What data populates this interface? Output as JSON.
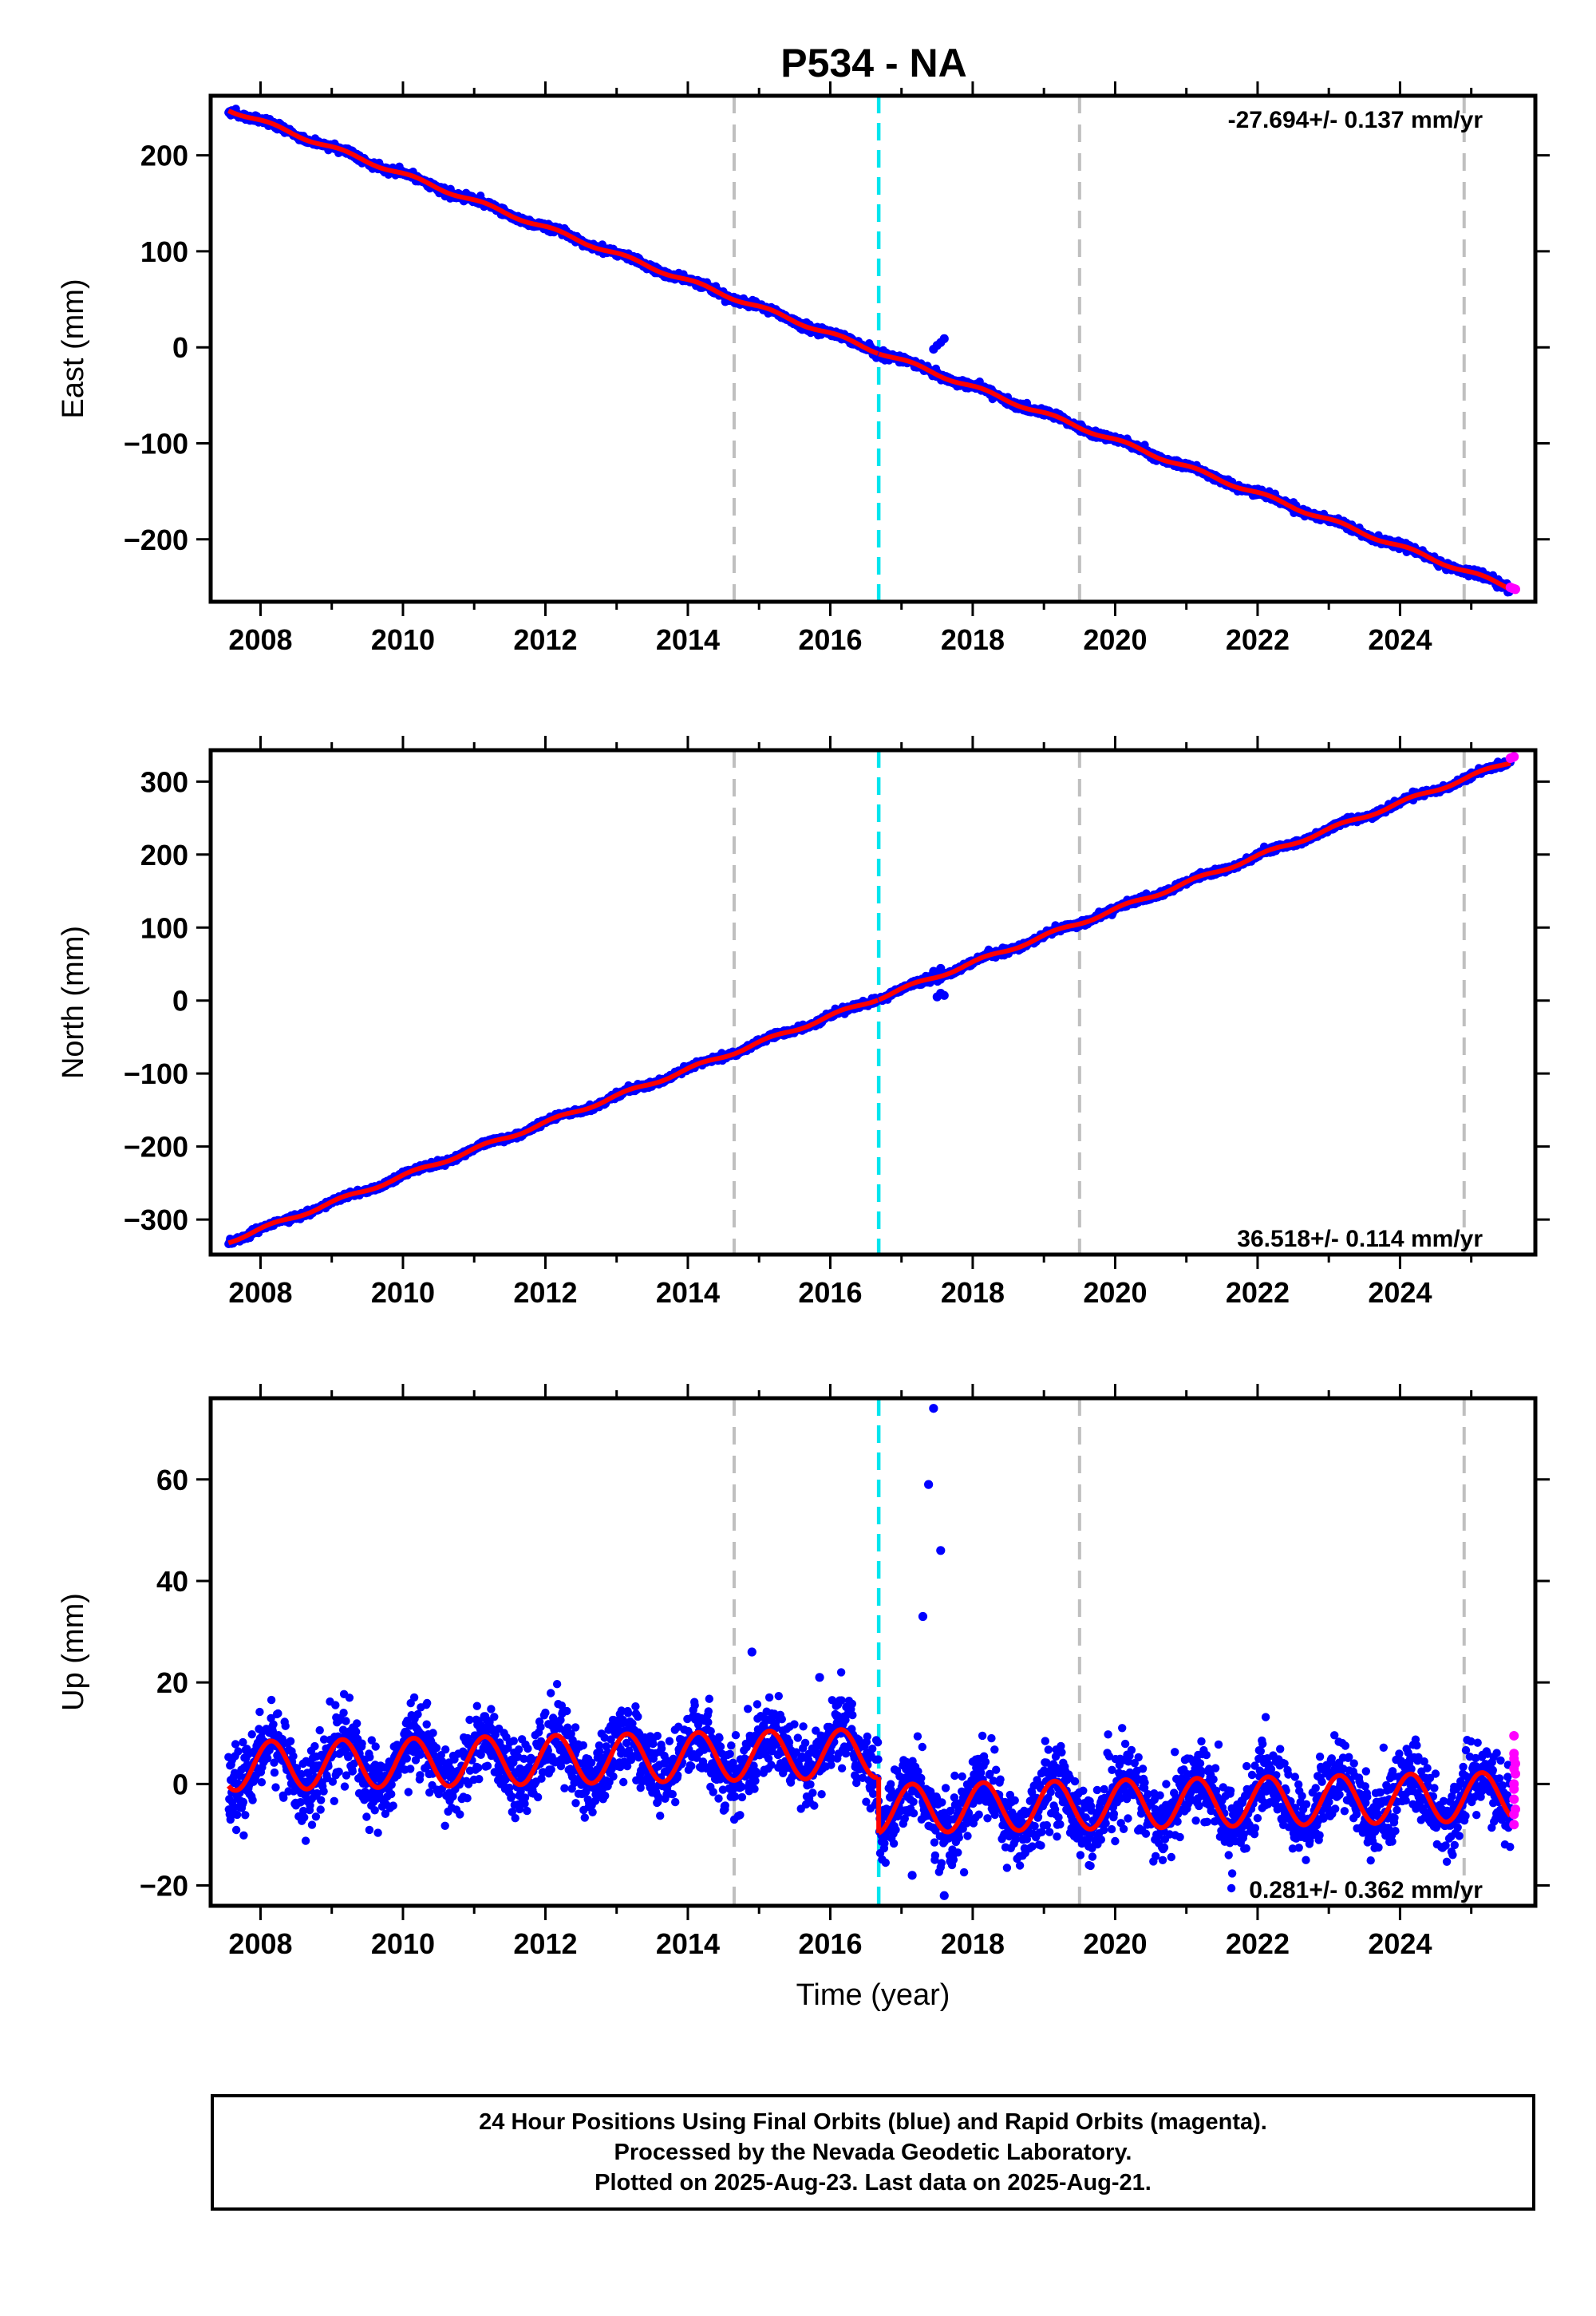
{
  "title": "P534 - NA",
  "caption": {
    "line1": "24 Hour Positions Using Final Orbits (blue) and Rapid Orbits (magenta).",
    "line2": "Processed by the Nevada Geodetic Laboratory.",
    "line3": "Plotted on 2025-Aug-23. Last data on 2025-Aug-21."
  },
  "colors": {
    "final_orbits": "#0000ff",
    "rapid_orbits": "#ff00ff",
    "model_fit": "#ff0000",
    "reference_lines": "#bfbfbf",
    "equipment_change_line": "#00e5ee"
  },
  "chart_data": [
    {
      "type": "scatter",
      "ylabel": "East (mm)",
      "xlabel": "",
      "xlim": [
        2007.3,
        2025.9
      ],
      "ylim": [
        -265,
        262
      ],
      "xticks": [
        2008,
        2010,
        2012,
        2014,
        2016,
        2018,
        2020,
        2022,
        2024
      ],
      "yticks": [
        -200,
        -100,
        0,
        100,
        200
      ],
      "rate_label": "-27.694+/- 0.137 mm/yr",
      "rate_position": "top-right",
      "reference_lines_x": [
        2014.65,
        2019.5,
        2024.9
      ],
      "equipment_change_x": [
        2016.68
      ],
      "series": [
        {
          "role": "final",
          "model": {
            "start": 2007.55,
            "end": 2025.55,
            "y_at_start": 248,
            "rate": -27.694,
            "offset_at_break": 0,
            "break_x": 2016.68,
            "annual_amplitude": 2.0,
            "noise": 1.8
          },
          "outliers": [
            [
              2017.45,
              -2
            ],
            [
              2017.55,
              5
            ],
            [
              2017.6,
              9
            ],
            [
              2017.5,
              2
            ]
          ]
        },
        {
          "role": "rapid",
          "points": [
            [
              2025.55,
              -250
            ],
            [
              2025.58,
              -251
            ],
            [
              2025.6,
              -251.5
            ],
            [
              2025.62,
              -252
            ]
          ]
        }
      ]
    },
    {
      "type": "scatter",
      "ylabel": "North (mm)",
      "xlabel": "",
      "xlim": [
        2007.3,
        2025.9
      ],
      "ylim": [
        -348,
        343
      ],
      "xticks": [
        2008,
        2010,
        2012,
        2014,
        2016,
        2018,
        2020,
        2022,
        2024
      ],
      "yticks": [
        -300,
        -200,
        -100,
        0,
        100,
        200,
        300
      ],
      "rate_label": "36.518+/- 0.114 mm/yr",
      "rate_position": "bottom-right",
      "reference_lines_x": [
        2014.65,
        2019.5,
        2024.9
      ],
      "equipment_change_x": [
        2016.68
      ],
      "series": [
        {
          "role": "final",
          "model": {
            "start": 2007.55,
            "end": 2025.55,
            "y_at_start": -330,
            "rate": 36.518,
            "offset_at_break": 0,
            "break_x": 2016.68,
            "annual_amplitude": 2.5,
            "noise": 2.0
          },
          "outliers": [
            [
              2017.5,
              5
            ],
            [
              2017.55,
              10
            ],
            [
              2017.6,
              7
            ],
            [
              2017.45,
              40
            ],
            [
              2017.55,
              44
            ]
          ]
        },
        {
          "role": "rapid",
          "points": [
            [
              2025.55,
              332
            ],
            [
              2025.58,
              333
            ],
            [
              2025.6,
              334
            ]
          ]
        }
      ]
    },
    {
      "type": "scatter",
      "ylabel": "Up (mm)",
      "xlabel": "Time (year)",
      "xlim": [
        2007.3,
        2025.9
      ],
      "ylim": [
        -24,
        76
      ],
      "xticks": [
        2008,
        2010,
        2012,
        2014,
        2016,
        2018,
        2020,
        2022,
        2024
      ],
      "yticks": [
        -20,
        0,
        20,
        40,
        60
      ],
      "rate_label": "0.281+/- 0.362 mm/yr",
      "rate_position": "bottom-right",
      "reference_lines_x": [
        2014.65,
        2019.5,
        2024.9
      ],
      "equipment_change_x": [
        2016.68
      ],
      "series": [
        {
          "role": "final",
          "model": {
            "start": 2007.55,
            "end": 2025.55,
            "y_at_start": 3.5,
            "rate": 0.281,
            "offset_at_break": -11,
            "break_x": 2016.68,
            "annual_amplitude": 4.8,
            "noise": 3.6
          },
          "outliers": [
            [
              2017.45,
              74
            ],
            [
              2017.38,
              59
            ],
            [
              2017.55,
              46
            ],
            [
              2017.3,
              33
            ],
            [
              2014.9,
              26
            ],
            [
              2017.6,
              -22
            ],
            [
              2015.85,
              21
            ],
            [
              2017.15,
              -18
            ]
          ]
        },
        {
          "role": "rapid",
          "points": [
            [
              2025.6,
              9.5
            ],
            [
              2025.6,
              6
            ],
            [
              2025.6,
              5
            ],
            [
              2025.62,
              4
            ],
            [
              2025.6,
              3
            ],
            [
              2025.62,
              2
            ],
            [
              2025.6,
              0
            ],
            [
              2025.6,
              -1
            ],
            [
              2025.6,
              -3
            ],
            [
              2025.62,
              -5
            ],
            [
              2025.6,
              -6
            ],
            [
              2025.6,
              -8
            ]
          ]
        }
      ]
    }
  ]
}
